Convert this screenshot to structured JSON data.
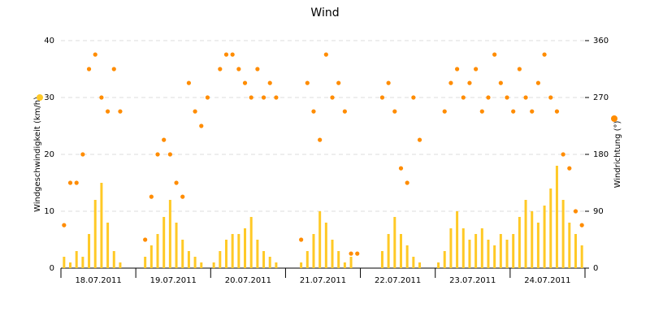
{
  "chart_data": {
    "type": "bar_scatter",
    "title": "Wind",
    "categories": [
      null,
      null,
      null,
      null,
      null,
      null,
      "18.07.2011",
      null,
      null,
      null,
      null,
      null,
      null,
      null,
      null,
      null,
      null,
      null,
      "19.07.2011",
      null,
      null,
      null,
      null,
      null,
      null,
      null,
      null,
      null,
      null,
      null,
      "20.07.2011",
      null,
      null,
      null,
      null,
      null,
      null,
      null,
      null,
      null,
      null,
      null,
      "21.07.2011",
      null,
      null,
      null,
      null,
      null,
      null,
      null,
      null,
      null,
      null,
      null,
      "22.07.2011",
      null,
      null,
      null,
      null,
      null,
      null,
      null,
      null,
      null,
      null,
      null,
      "23.07.2011",
      null,
      null,
      null,
      null,
      null,
      null,
      null,
      null,
      null,
      null,
      null,
      "24.07.2011",
      null,
      null,
      null,
      null,
      null
    ],
    "ylabel": "Windgeschwindigkeit (km/h)",
    "y2label": "Windrichtung (°)",
    "ylim": [
      0,
      40
    ],
    "yticks": [
      0,
      10,
      20,
      30,
      40
    ],
    "y2lim": [
      0,
      360
    ],
    "y2ticks": [
      0,
      90,
      180,
      270,
      360
    ],
    "grid": true,
    "series": [
      {
        "name": "Windgeschwindigkeit",
        "color": "#ffc926",
        "kind": "bar",
        "values": [
          2,
          1,
          3,
          2,
          6,
          12,
          15,
          8,
          3,
          1,
          0,
          0,
          0,
          2,
          4,
          6,
          9,
          12,
          8,
          5,
          3,
          2,
          1,
          0,
          1,
          3,
          5,
          6,
          6,
          7,
          9,
          5,
          3,
          2,
          1,
          0,
          0,
          0,
          1,
          3,
          6,
          10,
          8,
          5,
          3,
          1,
          2,
          0,
          0,
          0,
          0,
          3,
          6,
          9,
          6,
          4,
          2,
          1,
          0,
          0,
          1,
          3,
          7,
          10,
          7,
          5,
          6,
          7,
          5,
          4,
          6,
          5,
          6,
          9,
          12,
          10,
          8,
          11,
          14,
          18,
          12,
          8,
          6,
          4
        ]
      },
      {
        "name": "Windrichtung",
        "color": "#ff8c00",
        "kind": "scatter",
        "axis": "y2",
        "values": [
          68,
          135,
          135,
          180,
          315,
          338,
          270,
          248,
          315,
          248,
          null,
          null,
          null,
          45,
          113,
          180,
          203,
          180,
          135,
          113,
          293,
          248,
          225,
          270,
          null,
          315,
          338,
          338,
          315,
          293,
          270,
          315,
          270,
          293,
          270,
          null,
          null,
          null,
          45,
          293,
          248,
          203,
          338,
          270,
          293,
          248,
          23,
          23,
          null,
          null,
          null,
          270,
          293,
          248,
          158,
          135,
          270,
          203,
          null,
          null,
          null,
          248,
          293,
          315,
          270,
          293,
          315,
          248,
          270,
          338,
          293,
          270,
          248,
          315,
          270,
          248,
          293,
          338,
          270,
          248,
          180,
          158,
          90,
          68
        ]
      }
    ]
  }
}
